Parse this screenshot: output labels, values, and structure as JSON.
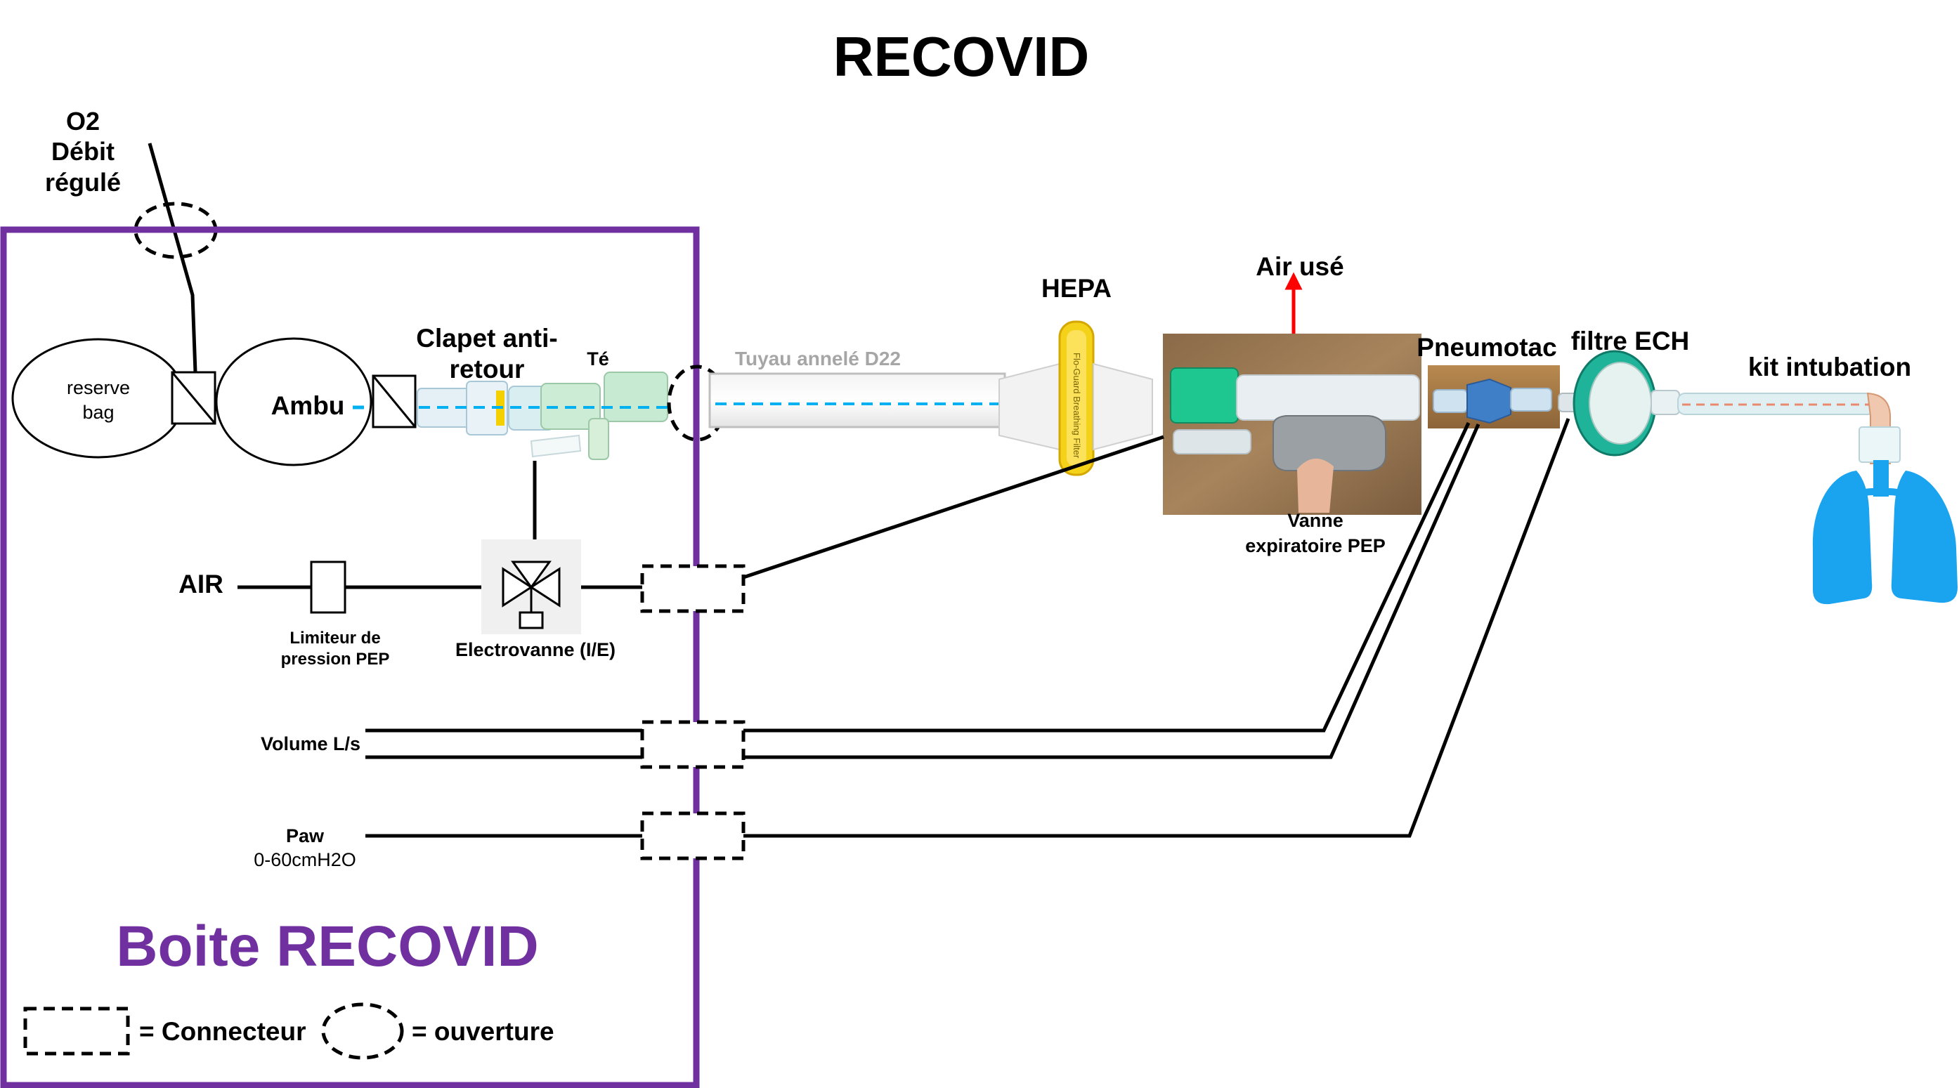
{
  "title": "RECOVID",
  "labels": {
    "o2_line1": "O2",
    "o2_line2": "Débit",
    "o2_line3": "régulé",
    "reserve_line1": "reserve",
    "reserve_line2": "bag",
    "ambu": "Ambu",
    "clapet_line1": "Clapet anti-",
    "clapet_line2": "retour",
    "te": "Té",
    "tuyau": "Tuyau annelé D22",
    "hepa": "HEPA",
    "air_use": "Air usé",
    "pneumotac": "Pneumotac",
    "filtre": "filtre ECH",
    "kit": "kit intubation",
    "vanne_line1": "Vanne",
    "vanne_line2": "expiratoire PEP",
    "air": "AIR",
    "limiteur_line1": "Limiteur de",
    "limiteur_line2": "pression PEP",
    "electrovanne": "Electrovanne (I/E)",
    "volume": "Volume L/s",
    "paw_line1": "Paw",
    "paw_line2": "0-60cmH2O",
    "filter_print": "Flo-Guard Breathing Filter"
  },
  "boite": {
    "title": "Boite RECOVID",
    "color": "#7030a0"
  },
  "legend": {
    "connecteur": "= Connecteur",
    "ouverture": "= ouverture"
  },
  "colors": {
    "line": "#000000",
    "airflow": "#00b0f0",
    "arrow": "#ff0000",
    "lung": "#1aa3ef",
    "tube_grey": "#a6a6a6"
  },
  "icons": [
    "valve-icon",
    "lungs-icon",
    "solenoid-valve-icon",
    "hepa-filter-icon",
    "hme-filter-icon"
  ]
}
